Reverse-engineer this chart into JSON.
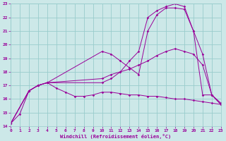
{
  "xlabel": "Windchill (Refroidissement éolien,°C)",
  "background_color": "#cce8e8",
  "grid_color": "#99cccc",
  "line_color": "#990099",
  "xlim": [
    0,
    23
  ],
  "ylim": [
    14,
    23
  ],
  "xticks": [
    0,
    1,
    2,
    3,
    4,
    5,
    6,
    7,
    8,
    9,
    10,
    11,
    12,
    13,
    14,
    15,
    16,
    17,
    18,
    19,
    20,
    21,
    22,
    23
  ],
  "yticks": [
    14,
    15,
    16,
    17,
    18,
    19,
    20,
    21,
    22,
    23
  ],
  "series": [
    {
      "x": [
        0,
        1,
        2,
        3,
        4,
        5,
        6,
        7,
        8,
        9,
        10,
        11,
        12,
        13,
        14,
        15,
        16,
        17,
        18,
        19,
        20,
        21,
        22,
        23
      ],
      "y": [
        14.2,
        14.9,
        16.6,
        17.0,
        17.2,
        16.8,
        16.5,
        16.2,
        16.2,
        16.3,
        16.5,
        16.5,
        16.4,
        16.3,
        16.3,
        16.2,
        16.2,
        16.1,
        16.0,
        16.0,
        15.9,
        15.8,
        15.7,
        15.6
      ]
    },
    {
      "x": [
        0,
        2,
        3,
        4,
        10,
        11,
        12,
        13,
        14,
        15,
        16,
        17,
        18,
        19,
        20,
        21,
        22,
        23
      ],
      "y": [
        14.2,
        16.6,
        17.0,
        17.2,
        17.5,
        17.8,
        18.0,
        18.2,
        18.5,
        18.8,
        19.2,
        19.5,
        19.7,
        19.5,
        19.3,
        18.5,
        16.3,
        15.7
      ]
    },
    {
      "x": [
        0,
        2,
        3,
        4,
        10,
        11,
        12,
        13,
        14,
        15,
        16,
        17,
        18,
        19,
        20,
        21,
        22,
        23
      ],
      "y": [
        14.2,
        16.6,
        17.0,
        17.2,
        19.5,
        19.3,
        18.8,
        18.3,
        17.8,
        21.0,
        22.2,
        22.7,
        22.7,
        22.6,
        21.0,
        19.3,
        16.3,
        15.6
      ]
    },
    {
      "x": [
        0,
        2,
        3,
        4,
        10,
        11,
        12,
        13,
        14,
        15,
        16,
        17,
        18,
        19,
        20,
        21,
        22,
        23
      ],
      "y": [
        14.2,
        16.6,
        17.0,
        17.2,
        17.2,
        17.5,
        18.0,
        18.8,
        19.5,
        22.0,
        22.5,
        22.8,
        23.0,
        22.8,
        21.0,
        16.3,
        16.3,
        15.6
      ]
    }
  ]
}
